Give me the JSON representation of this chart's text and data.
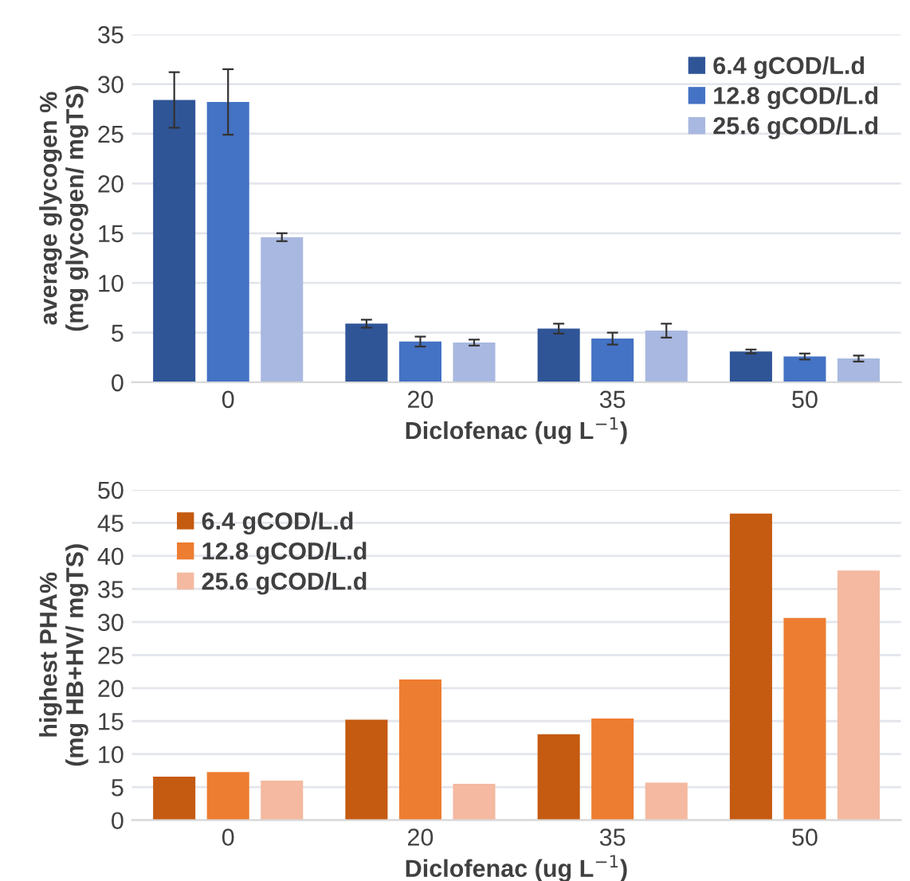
{
  "chart_data": [
    {
      "type": "bar",
      "categories": [
        "0",
        "20",
        "35",
        "50"
      ],
      "xlabel": "Diclofenac (ug L$^{−1}$)",
      "ylabel": "average glycogen %\n(mg glycogen/ mgTS)",
      "ylim": [
        0,
        35
      ],
      "yticks": [
        0,
        5,
        10,
        15,
        20,
        25,
        30,
        35
      ],
      "grid": "y",
      "legend": "top right",
      "series": [
        {
          "name": "6.4 gCOD/L.d",
          "color": "#2f5597",
          "values": [
            28.4,
            5.9,
            5.4,
            3.1
          ],
          "errors": [
            2.8,
            0.4,
            0.5,
            0.2
          ]
        },
        {
          "name": "12.8 gCOD/L.d",
          "color": "#4472c4",
          "values": [
            28.2,
            4.1,
            4.4,
            2.6
          ],
          "errors": [
            3.3,
            0.5,
            0.6,
            0.3
          ]
        },
        {
          "name": "25.6 gCOD/L.d",
          "color": "#a9b8e0",
          "values": [
            14.6,
            4.0,
            5.2,
            2.4
          ],
          "errors": [
            0.4,
            0.3,
            0.7,
            0.3
          ]
        }
      ]
    },
    {
      "type": "bar",
      "categories": [
        "0",
        "20",
        "35",
        "50"
      ],
      "xlabel": "Diclofenac (ug L$^{−1}$)",
      "ylabel": "highest PHA%\n(mg HB+HV/ mgTS)",
      "ylim": [
        0,
        50
      ],
      "yticks": [
        0,
        5,
        10,
        15,
        20,
        25,
        30,
        35,
        40,
        45,
        50
      ],
      "grid": "y",
      "legend": "top left",
      "series": [
        {
          "name": "6.4 gCOD/L.d",
          "color": "#c55a11",
          "values": [
            6.6,
            15.2,
            13.0,
            46.4
          ]
        },
        {
          "name": "12.8 gCOD/L.d",
          "color": "#ed7d31",
          "values": [
            7.3,
            21.3,
            15.4,
            30.6
          ]
        },
        {
          "name": "25.6 gCOD/L.d",
          "color": "#f4b9a0",
          "values": [
            6.0,
            5.5,
            5.7,
            37.8
          ]
        }
      ]
    }
  ]
}
